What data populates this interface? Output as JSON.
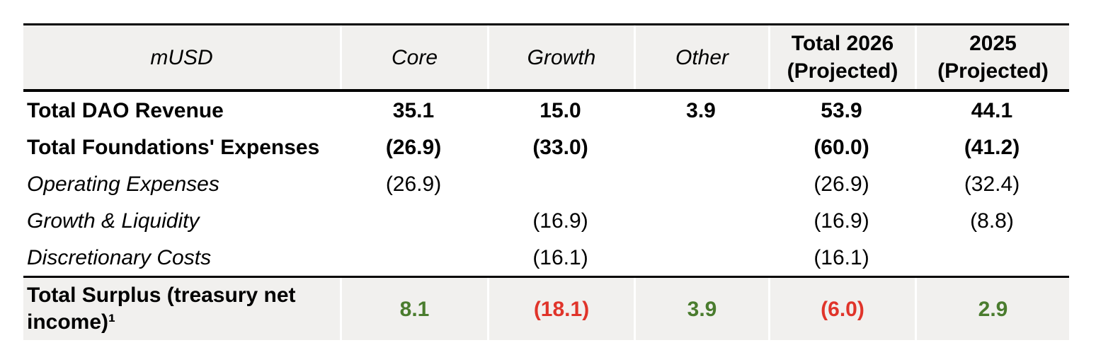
{
  "colors": {
    "positive": "#4a7c2e",
    "negative": "#e0342a",
    "row_shade": "#f1f0ee",
    "border": "#000000"
  },
  "table": {
    "unit_label": "mUSD",
    "columns": [
      {
        "key": "musd",
        "label": "mUSD",
        "style": "italic"
      },
      {
        "key": "core",
        "label": "Core",
        "style": "italic"
      },
      {
        "key": "growth",
        "label": "Growth",
        "style": "italic"
      },
      {
        "key": "other",
        "label": "Other",
        "style": "italic"
      },
      {
        "key": "total-2026-projected",
        "label": "Total 2026\n(Projected)",
        "style": "bold"
      },
      {
        "key": "2025-projected",
        "label": "2025\n(Projected)",
        "style": "bold"
      }
    ],
    "rows": [
      {
        "key": "total-dao-revenue",
        "label": "Total DAO Revenue",
        "style": "bold",
        "values": [
          "35.1",
          "15.0",
          "3.9",
          "53.9",
          "44.1"
        ]
      },
      {
        "key": "total-foundations-expenses",
        "label": "Total Foundations' Expenses",
        "style": "bold",
        "values": [
          "(26.9)",
          "(33.0)",
          "",
          "(60.0)",
          "(41.2)"
        ]
      },
      {
        "key": "operating-expenses",
        "label": "Operating Expenses",
        "style": "italic",
        "values": [
          "(26.9)",
          "",
          "",
          "(26.9)",
          "(32.4)"
        ]
      },
      {
        "key": "growth-liquidity",
        "label": "Growth & Liquidity",
        "style": "italic",
        "values": [
          "",
          "(16.9)",
          "",
          "(16.9)",
          "(8.8)"
        ]
      },
      {
        "key": "discretionary-costs",
        "label": "Discretionary Costs",
        "style": "italic",
        "values": [
          "",
          "(16.1)",
          "",
          "(16.1)",
          ""
        ]
      },
      {
        "key": "total-surplus",
        "label": "Total Surplus (treasury net income)¹",
        "style": "total",
        "values": [
          "8.1",
          "(18.1)",
          "3.9",
          "(6.0)",
          "2.9"
        ],
        "value_colors": [
          "positive",
          "negative",
          "positive",
          "negative",
          "positive"
        ]
      }
    ]
  }
}
